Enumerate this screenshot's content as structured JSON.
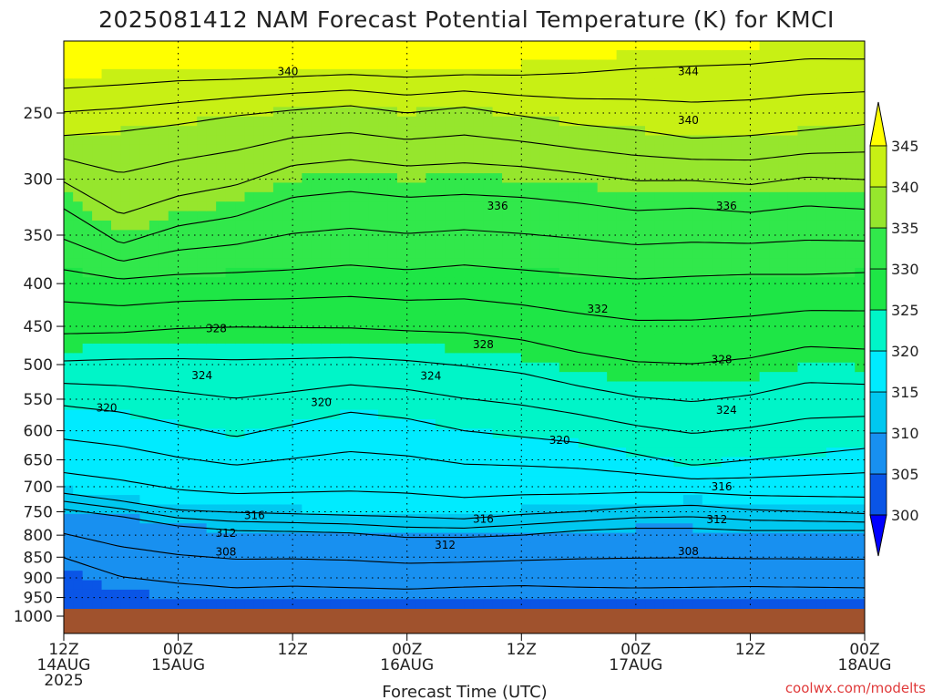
{
  "chart_data": {
    "type": "heatmap",
    "title": "2025081412 NAM Forecast Potential Temperature (K) for KMCI",
    "xlabel": "Forecast Time (UTC)",
    "ylabel": "",
    "y_scale": "log-pressure",
    "y_ticks": [
      250,
      300,
      350,
      400,
      450,
      500,
      550,
      600,
      650,
      700,
      750,
      800,
      850,
      900,
      950,
      1000
    ],
    "ylim": [
      1000,
      200
    ],
    "x_ticks": [
      {
        "h": 0,
        "l1": "12Z",
        "l2": "14AUG",
        "l3": "2025"
      },
      {
        "h": 12,
        "l1": "00Z",
        "l2": "15AUG",
        "l3": ""
      },
      {
        "h": 24,
        "l1": "12Z",
        "l2": "",
        "l3": ""
      },
      {
        "h": 36,
        "l1": "00Z",
        "l2": "16AUG",
        "l3": ""
      },
      {
        "h": 48,
        "l1": "12Z",
        "l2": "",
        "l3": ""
      },
      {
        "h": 60,
        "l1": "00Z",
        "l2": "17AUG",
        "l3": ""
      },
      {
        "h": 72,
        "l1": "12Z",
        "l2": "",
        "l3": ""
      },
      {
        "h": 84,
        "l1": "00Z",
        "l2": "18AUG",
        "l3": ""
      }
    ],
    "xlim": [
      0,
      84
    ],
    "colorbar": {
      "levels": [
        300,
        305,
        310,
        315,
        320,
        325,
        330,
        335,
        340,
        345
      ],
      "colors": [
        "#0000ff",
        "#0a55e6",
        "#1890f0",
        "#00c8f0",
        "#00ebff",
        "#00f5c8",
        "#1ee646",
        "#31e84b",
        "#96e62d",
        "#c8f014",
        "#ffff00"
      ]
    },
    "fields": [
      {
        "theta": 345,
        "pts": [
          [
            0,
            226
          ],
          [
            6,
            224
          ],
          [
            12,
            222
          ],
          [
            18,
            222
          ],
          [
            24,
            221
          ],
          [
            30,
            220
          ],
          [
            36,
            221
          ],
          [
            42,
            220
          ],
          [
            48,
            219
          ],
          [
            54,
            216
          ],
          [
            60,
            212
          ],
          [
            66,
            209
          ],
          [
            72,
            208
          ],
          [
            78,
            205
          ],
          [
            84,
            206
          ]
        ]
      },
      {
        "theta": 340,
        "pts": [
          [
            0,
            266
          ],
          [
            6,
            263
          ],
          [
            12,
            258
          ],
          [
            18,
            252
          ],
          [
            24,
            248
          ],
          [
            30,
            245
          ],
          [
            36,
            250
          ],
          [
            42,
            246
          ],
          [
            48,
            252
          ],
          [
            54,
            258
          ],
          [
            60,
            262
          ],
          [
            66,
            268
          ],
          [
            72,
            266
          ],
          [
            78,
            262
          ],
          [
            84,
            258
          ]
        ]
      },
      {
        "theta": 335,
        "pts": [
          [
            0,
            312
          ],
          [
            6,
            350
          ],
          [
            12,
            330
          ],
          [
            18,
            320
          ],
          [
            24,
            300
          ],
          [
            30,
            295
          ],
          [
            36,
            300
          ],
          [
            42,
            298
          ],
          [
            48,
            300
          ],
          [
            54,
            305
          ],
          [
            60,
            312
          ],
          [
            66,
            310
          ],
          [
            72,
            315
          ],
          [
            78,
            308
          ],
          [
            84,
            312
          ]
        ]
      },
      {
        "theta": 330,
        "pts": [
          [
            0,
            385
          ],
          [
            6,
            395
          ],
          [
            12,
            390
          ],
          [
            18,
            388
          ],
          [
            24,
            385
          ],
          [
            30,
            380
          ],
          [
            36,
            385
          ],
          [
            42,
            380
          ],
          [
            48,
            385
          ],
          [
            54,
            390
          ],
          [
            60,
            395
          ],
          [
            66,
            392
          ],
          [
            72,
            390
          ],
          [
            78,
            390
          ],
          [
            84,
            388
          ]
        ]
      },
      {
        "theta": 325,
        "pts": [
          [
            0,
            480
          ],
          [
            6,
            475
          ],
          [
            12,
            470
          ],
          [
            18,
            468
          ],
          [
            24,
            470
          ],
          [
            30,
            472
          ],
          [
            36,
            475
          ],
          [
            42,
            480
          ],
          [
            48,
            490
          ],
          [
            54,
            510
          ],
          [
            60,
            525
          ],
          [
            66,
            530
          ],
          [
            72,
            520
          ],
          [
            78,
            500
          ],
          [
            84,
            505
          ]
        ]
      },
      {
        "theta": 320,
        "pts": [
          [
            0,
            560
          ],
          [
            6,
            570
          ],
          [
            12,
            590
          ],
          [
            18,
            610
          ],
          [
            24,
            590
          ],
          [
            30,
            570
          ],
          [
            36,
            580
          ],
          [
            42,
            600
          ],
          [
            48,
            610
          ],
          [
            54,
            620
          ],
          [
            60,
            640
          ],
          [
            66,
            660
          ],
          [
            72,
            650
          ],
          [
            78,
            640
          ],
          [
            84,
            630
          ]
        ]
      },
      {
        "theta": 315,
        "pts": [
          [
            0,
            705
          ],
          [
            6,
            720
          ],
          [
            12,
            738
          ],
          [
            18,
            742
          ],
          [
            24,
            745
          ],
          [
            30,
            748
          ],
          [
            36,
            750
          ],
          [
            42,
            755
          ],
          [
            48,
            745
          ],
          [
            54,
            740
          ],
          [
            60,
            730
          ],
          [
            66,
            725
          ],
          [
            72,
            735
          ],
          [
            78,
            740
          ],
          [
            84,
            745
          ]
        ]
      },
      {
        "theta": 310,
        "pts": [
          [
            0,
            745
          ],
          [
            6,
            760
          ],
          [
            12,
            780
          ],
          [
            18,
            790
          ],
          [
            24,
            792
          ],
          [
            30,
            795
          ],
          [
            36,
            805
          ],
          [
            42,
            805
          ],
          [
            48,
            800
          ],
          [
            54,
            790
          ],
          [
            60,
            785
          ],
          [
            66,
            785
          ],
          [
            72,
            790
          ],
          [
            78,
            790
          ],
          [
            84,
            790
          ]
        ]
      },
      {
        "theta": 305,
        "pts": [
          [
            0,
            880
          ],
          [
            6,
            935
          ],
          [
            12,
            950
          ],
          [
            18,
            962
          ],
          [
            24,
            956
          ],
          [
            30,
            960
          ],
          [
            36,
            962
          ],
          [
            42,
            955
          ],
          [
            48,
            952
          ],
          [
            54,
            960
          ],
          [
            60,
            964
          ],
          [
            66,
            962
          ],
          [
            72,
            958
          ],
          [
            78,
            960
          ],
          [
            84,
            962
          ]
        ]
      }
    ],
    "contour_levels": [
      306,
      308,
      310,
      312,
      314,
      316,
      318,
      320,
      322,
      324,
      326,
      328,
      330,
      332,
      334,
      336,
      338,
      340,
      342,
      344
    ],
    "contour_labels": [
      {
        "text": "340",
        "h": 23.5,
        "p": 223
      },
      {
        "text": "344",
        "h": 65.5,
        "p": 223
      },
      {
        "text": "340",
        "h": 65.5,
        "p": 255
      },
      {
        "text": "336",
        "h": 45.5,
        "p": 323
      },
      {
        "text": "336",
        "h": 69.5,
        "p": 323
      },
      {
        "text": "332",
        "h": 56,
        "p": 429
      },
      {
        "text": "328",
        "h": 16,
        "p": 453
      },
      {
        "text": "328",
        "h": 44,
        "p": 473
      },
      {
        "text": "328",
        "h": 69,
        "p": 493
      },
      {
        "text": "324",
        "h": 14.5,
        "p": 515
      },
      {
        "text": "324",
        "h": 38.5,
        "p": 516
      },
      {
        "text": "324",
        "h": 69.5,
        "p": 567
      },
      {
        "text": "320",
        "h": 4.5,
        "p": 563
      },
      {
        "text": "320",
        "h": 27,
        "p": 555
      },
      {
        "text": "320",
        "h": 52,
        "p": 616
      },
      {
        "text": "316",
        "h": 69,
        "p": 700
      },
      {
        "text": "316",
        "h": 20,
        "p": 758
      },
      {
        "text": "316",
        "h": 44,
        "p": 765
      },
      {
        "text": "312",
        "h": 17,
        "p": 796
      },
      {
        "text": "312",
        "h": 40,
        "p": 822
      },
      {
        "text": "312",
        "h": 68.5,
        "p": 766
      },
      {
        "text": "308",
        "h": 17,
        "p": 838
      },
      {
        "text": "308",
        "h": 65.5,
        "p": 837
      }
    ]
  },
  "credit": "coolwx.com/modelts",
  "ground_color": "#a0522d"
}
